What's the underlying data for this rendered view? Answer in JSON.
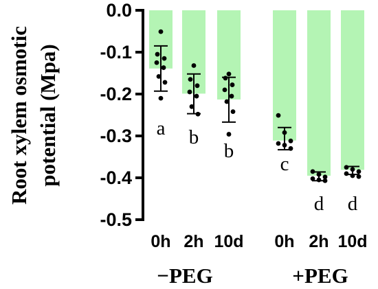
{
  "chart_data": {
    "type": "bar",
    "ylabel_lines": [
      "Root xylem osmotic",
      "potential (Mpa)"
    ],
    "ylim": [
      -0.5,
      0.0
    ],
    "yticks": [
      "0.0",
      "-0.1",
      "-0.2",
      "-0.3",
      "-0.4",
      "-0.5"
    ],
    "ytick_values": [
      0.0,
      -0.1,
      -0.2,
      -0.3,
      -0.4,
      -0.5
    ],
    "categories": [
      "0h",
      "2h",
      "10d",
      "0h",
      "2h",
      "10d"
    ],
    "groups": [
      "−PEG",
      "+PEG"
    ],
    "values": [
      -0.139,
      -0.199,
      -0.213,
      -0.311,
      -0.395,
      -0.381
    ],
    "error_low": [
      -0.193,
      -0.247,
      -0.267,
      -0.333,
      -0.407,
      -0.392
    ],
    "error_high": [
      -0.085,
      -0.152,
      -0.16,
      -0.28,
      -0.386,
      -0.373
    ],
    "letters": [
      "a",
      "b",
      "b",
      "c",
      "d",
      "d"
    ],
    "points": [
      [
        -0.051,
        -0.105,
        -0.115,
        -0.125,
        -0.137,
        -0.158,
        -0.172,
        -0.21
      ],
      [
        -0.132,
        -0.165,
        -0.18,
        -0.195,
        -0.205,
        -0.23,
        -0.248
      ],
      [
        -0.152,
        -0.162,
        -0.178,
        -0.19,
        -0.205,
        -0.218,
        -0.242,
        -0.296
      ],
      [
        -0.251,
        -0.292,
        -0.312,
        -0.318,
        -0.322,
        -0.33
      ],
      [
        -0.385,
        -0.392,
        -0.398,
        -0.402,
        -0.405,
        -0.407
      ],
      [
        -0.375,
        -0.38,
        -0.385,
        -0.39,
        -0.395,
        -0.397
      ]
    ],
    "bar_color": "#b4f4b4",
    "point_color": "#000000"
  }
}
